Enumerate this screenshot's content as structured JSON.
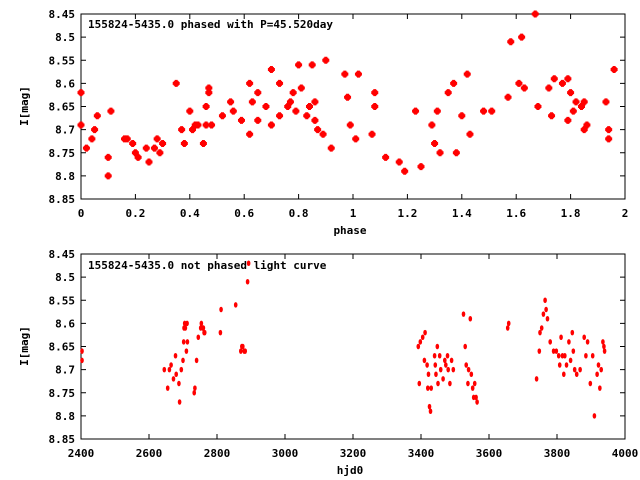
{
  "chart_data": [
    {
      "type": "scatter",
      "title": "155824-5435.0 phased with P=45.520day",
      "xlabel": "phase",
      "ylabel": "I[mag]",
      "xlim": [
        0,
        2
      ],
      "ylim": [
        8.85,
        8.45
      ],
      "y_inverted": true,
      "grid": false,
      "legend": "none",
      "marker_color": "#ff0000",
      "x_ticks": [
        "0",
        "0.2",
        "0.4",
        "0.6",
        "0.8",
        "1",
        "1.2",
        "1.4",
        "1.6",
        "1.8",
        "2"
      ],
      "y_ticks": [
        "8.45",
        "8.5",
        "8.55",
        "8.6",
        "8.65",
        "8.7",
        "8.75",
        "8.8",
        "8.85"
      ],
      "series": [
        {
          "points": [
            [
              0.0,
              8.62
            ],
            [
              0.0,
              8.69
            ],
            [
              0.02,
              8.74
            ],
            [
              0.04,
              8.72
            ],
            [
              0.05,
              8.7
            ],
            [
              0.06,
              8.67
            ],
            [
              0.1,
              8.8
            ],
            [
              0.1,
              8.76
            ],
            [
              0.11,
              8.66
            ],
            [
              0.16,
              8.72
            ],
            [
              0.17,
              8.72
            ],
            [
              0.19,
              8.73
            ],
            [
              0.2,
              8.75
            ],
            [
              0.21,
              8.76
            ],
            [
              0.24,
              8.74
            ],
            [
              0.25,
              8.77
            ],
            [
              0.27,
              8.74
            ],
            [
              0.28,
              8.72
            ],
            [
              0.29,
              8.75
            ],
            [
              0.3,
              8.73
            ],
            [
              0.35,
              8.6
            ],
            [
              0.37,
              8.7
            ],
            [
              0.38,
              8.73
            ],
            [
              0.4,
              8.66
            ],
            [
              0.41,
              8.7
            ],
            [
              0.42,
              8.69
            ],
            [
              0.43,
              8.69
            ],
            [
              0.45,
              8.73
            ],
            [
              0.46,
              8.69
            ],
            [
              0.46,
              8.65
            ],
            [
              0.47,
              8.61
            ],
            [
              0.47,
              8.62
            ],
            [
              0.48,
              8.69
            ],
            [
              0.52,
              8.67
            ],
            [
              0.55,
              8.64
            ],
            [
              0.56,
              8.66
            ],
            [
              0.59,
              8.68
            ],
            [
              0.62,
              8.6
            ],
            [
              0.62,
              8.71
            ],
            [
              0.63,
              8.64
            ],
            [
              0.65,
              8.62
            ],
            [
              0.65,
              8.68
            ],
            [
              0.68,
              8.65
            ],
            [
              0.7,
              8.57
            ],
            [
              0.7,
              8.69
            ],
            [
              0.73,
              8.6
            ],
            [
              0.73,
              8.67
            ],
            [
              0.76,
              8.65
            ],
            [
              0.77,
              8.64
            ],
            [
              0.78,
              8.62
            ],
            [
              0.79,
              8.66
            ],
            [
              0.8,
              8.56
            ],
            [
              0.81,
              8.61
            ],
            [
              0.83,
              8.67
            ],
            [
              0.84,
              8.65
            ],
            [
              0.85,
              8.56
            ],
            [
              0.86,
              8.64
            ],
            [
              0.86,
              8.68
            ],
            [
              0.87,
              8.7
            ],
            [
              0.89,
              8.71
            ],
            [
              0.9,
              8.55
            ],
            [
              0.92,
              8.74
            ],
            [
              0.97,
              8.58
            ],
            [
              0.98,
              8.63
            ],
            [
              0.99,
              8.69
            ],
            [
              1.01,
              8.72
            ],
            [
              1.02,
              8.58
            ],
            [
              1.07,
              8.71
            ],
            [
              1.08,
              8.62
            ],
            [
              1.08,
              8.65
            ],
            [
              1.12,
              8.76
            ],
            [
              1.17,
              8.77
            ],
            [
              1.19,
              8.79
            ],
            [
              1.23,
              8.66
            ],
            [
              1.25,
              8.78
            ],
            [
              1.29,
              8.69
            ],
            [
              1.3,
              8.73
            ],
            [
              1.31,
              8.66
            ],
            [
              1.32,
              8.75
            ],
            [
              1.35,
              8.62
            ],
            [
              1.37,
              8.6
            ],
            [
              1.38,
              8.75
            ],
            [
              1.4,
              8.67
            ],
            [
              1.42,
              8.58
            ],
            [
              1.43,
              8.71
            ],
            [
              1.48,
              8.66
            ],
            [
              1.51,
              8.66
            ],
            [
              1.57,
              8.63
            ],
            [
              1.58,
              8.51
            ],
            [
              1.61,
              8.6
            ],
            [
              1.62,
              8.5
            ],
            [
              1.63,
              8.61
            ],
            [
              1.67,
              8.45
            ],
            [
              1.68,
              8.65
            ],
            [
              1.72,
              8.61
            ],
            [
              1.73,
              8.67
            ],
            [
              1.74,
              8.59
            ],
            [
              1.77,
              8.6
            ],
            [
              1.79,
              8.59
            ],
            [
              1.79,
              8.68
            ],
            [
              1.8,
              8.62
            ],
            [
              1.81,
              8.66
            ],
            [
              1.82,
              8.64
            ],
            [
              1.84,
              8.65
            ],
            [
              1.85,
              8.64
            ],
            [
              1.85,
              8.7
            ],
            [
              1.86,
              8.69
            ],
            [
              1.93,
              8.64
            ],
            [
              1.94,
              8.7
            ],
            [
              1.94,
              8.72
            ],
            [
              1.96,
              8.57
            ]
          ]
        }
      ]
    },
    {
      "type": "scatter",
      "title": "155824-5435.0 not phased light curve",
      "xlabel": "hjd0",
      "ylabel": "I[mag]",
      "xlim": [
        2400,
        4000
      ],
      "ylim": [
        8.85,
        8.45
      ],
      "y_inverted": true,
      "grid": false,
      "legend": "none",
      "marker_color": "#ff0000",
      "x_ticks": [
        "2400",
        "2600",
        "2800",
        "3000",
        "3200",
        "3400",
        "3600",
        "3800",
        "4000"
      ],
      "y_ticks": [
        "8.45",
        "8.5",
        "8.55",
        "8.6",
        "8.65",
        "8.7",
        "8.75",
        "8.8",
        "8.85"
      ],
      "series": [
        {
          "points": [
            [
              2403,
              8.66
            ],
            [
              2403,
              8.68
            ],
            [
              2645,
              8.7
            ],
            [
              2655,
              8.74
            ],
            [
              2660,
              8.7
            ],
            [
              2665,
              8.69
            ],
            [
              2672,
              8.72
            ],
            [
              2678,
              8.67
            ],
            [
              2680,
              8.71
            ],
            [
              2688,
              8.73
            ],
            [
              2690,
              8.77
            ],
            [
              2695,
              8.7
            ],
            [
              2700,
              8.68
            ],
            [
              2702,
              8.64
            ],
            [
              2703,
              8.61
            ],
            [
              2705,
              8.6
            ],
            [
              2707,
              8.61
            ],
            [
              2710,
              8.66
            ],
            [
              2712,
              8.6
            ],
            [
              2713,
              8.64
            ],
            [
              2733,
              8.75
            ],
            [
              2735,
              8.74
            ],
            [
              2740,
              8.68
            ],
            [
              2745,
              8.63
            ],
            [
              2752,
              8.61
            ],
            [
              2754,
              8.6
            ],
            [
              2758,
              8.61
            ],
            [
              2760,
              8.61
            ],
            [
              2762,
              8.62
            ],
            [
              2764,
              8.62
            ],
            [
              2810,
              8.62
            ],
            [
              2812,
              8.57
            ],
            [
              2855,
              8.56
            ],
            [
              2870,
              8.66
            ],
            [
              2873,
              8.65
            ],
            [
              2876,
              8.65
            ],
            [
              2880,
              8.66
            ],
            [
              2883,
              8.66
            ],
            [
              2890,
              8.51
            ],
            [
              2893,
              8.47
            ],
            [
              3392,
              8.65
            ],
            [
              3395,
              8.73
            ],
            [
              3398,
              8.64
            ],
            [
              3405,
              8.63
            ],
            [
              3410,
              8.68
            ],
            [
              3412,
              8.62
            ],
            [
              3418,
              8.69
            ],
            [
              3420,
              8.74
            ],
            [
              3422,
              8.71
            ],
            [
              3425,
              8.78
            ],
            [
              3428,
              8.79
            ],
            [
              3430,
              8.74
            ],
            [
              3440,
              8.67
            ],
            [
              3442,
              8.69
            ],
            [
              3444,
              8.71
            ],
            [
              3448,
              8.65
            ],
            [
              3450,
              8.73
            ],
            [
              3455,
              8.67
            ],
            [
              3458,
              8.7
            ],
            [
              3465,
              8.72
            ],
            [
              3470,
              8.68
            ],
            [
              3473,
              8.69
            ],
            [
              3478,
              8.67
            ],
            [
              3480,
              8.7
            ],
            [
              3485,
              8.73
            ],
            [
              3490,
              8.68
            ],
            [
              3495,
              8.7
            ],
            [
              3525,
              8.58
            ],
            [
              3530,
              8.65
            ],
            [
              3533,
              8.69
            ],
            [
              3538,
              8.73
            ],
            [
              3540,
              8.7
            ],
            [
              3545,
              8.59
            ],
            [
              3548,
              8.71
            ],
            [
              3552,
              8.74
            ],
            [
              3555,
              8.76
            ],
            [
              3558,
              8.73
            ],
            [
              3562,
              8.76
            ],
            [
              3565,
              8.77
            ],
            [
              3655,
              8.61
            ],
            [
              3658,
              8.6
            ],
            [
              3740,
              8.72
            ],
            [
              3748,
              8.66
            ],
            [
              3750,
              8.62
            ],
            [
              3755,
              8.61
            ],
            [
              3760,
              8.58
            ],
            [
              3765,
              8.55
            ],
            [
              3768,
              8.57
            ],
            [
              3772,
              8.59
            ],
            [
              3780,
              8.64
            ],
            [
              3790,
              8.66
            ],
            [
              3798,
              8.66
            ],
            [
              3805,
              8.67
            ],
            [
              3808,
              8.69
            ],
            [
              3812,
              8.63
            ],
            [
              3816,
              8.67
            ],
            [
              3820,
              8.71
            ],
            [
              3823,
              8.67
            ],
            [
              3828,
              8.69
            ],
            [
              3835,
              8.64
            ],
            [
              3840,
              8.68
            ],
            [
              3845,
              8.62
            ],
            [
              3848,
              8.66
            ],
            [
              3852,
              8.7
            ],
            [
              3858,
              8.71
            ],
            [
              3868,
              8.7
            ],
            [
              3880,
              8.63
            ],
            [
              3885,
              8.67
            ],
            [
              3890,
              8.64
            ],
            [
              3898,
              8.73
            ],
            [
              3905,
              8.67
            ],
            [
              3910,
              8.8
            ],
            [
              3918,
              8.71
            ],
            [
              3922,
              8.69
            ],
            [
              3926,
              8.74
            ],
            [
              3930,
              8.7
            ],
            [
              3935,
              8.64
            ],
            [
              3938,
              8.65
            ],
            [
              3940,
              8.66
            ]
          ]
        }
      ]
    }
  ]
}
